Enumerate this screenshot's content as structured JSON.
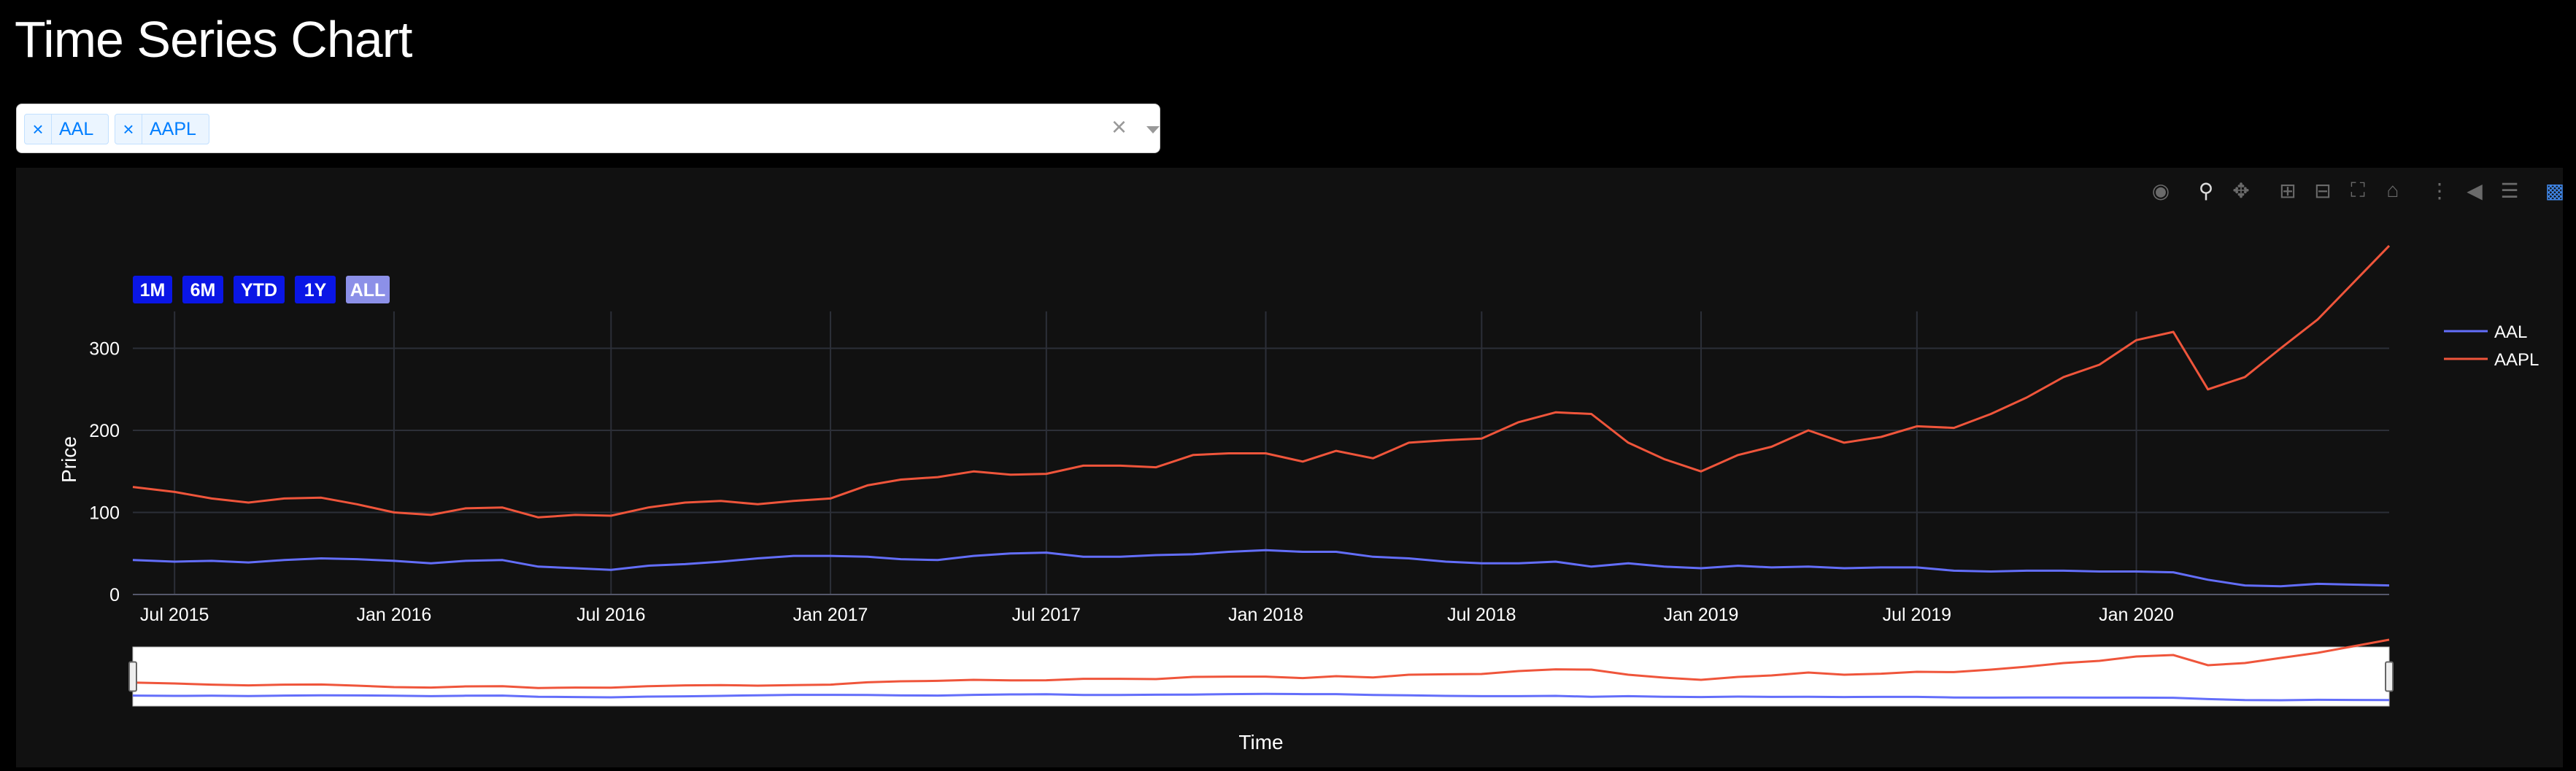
{
  "page_title": "Time Series Chart",
  "dropdown": {
    "selected": [
      "AAL",
      "AAPL"
    ],
    "remove_glyph": "×",
    "clear_glyph": "×"
  },
  "modebar": [
    "camera-icon",
    "zoom-icon",
    "pan-icon",
    "zoom-in-icon",
    "zoom-out-icon",
    "autoscale-icon",
    "reset-axes-icon",
    "spike-lines-icon",
    "hover-closest-icon",
    "hover-compare-icon",
    "plotly-logo-icon"
  ],
  "range_selector": [
    "1M",
    "6M",
    "YTD",
    "1Y",
    "ALL"
  ],
  "range_selector_active": "ALL",
  "colors": {
    "background": "#111111",
    "AAL": "#636efa",
    "AAPL": "#ef553b",
    "button": "#0a16e6",
    "button_active": "#8c90e8"
  },
  "chart_data": {
    "type": "line",
    "title": "",
    "xlabel": "Time",
    "ylabel": "Price",
    "ylim": [
      0,
      345
    ],
    "yticks": [
      0,
      100,
      200,
      300
    ],
    "xlim": [
      "2015-05-27",
      "2020-07-31"
    ],
    "xticks": [
      {
        "date": "2015-07-01",
        "label": "Jul 2015"
      },
      {
        "date": "2016-01-01",
        "label": "Jan 2016"
      },
      {
        "date": "2016-07-01",
        "label": "Jul 2016"
      },
      {
        "date": "2017-01-01",
        "label": "Jan 2017"
      },
      {
        "date": "2017-07-01",
        "label": "Jul 2017"
      },
      {
        "date": "2018-01-01",
        "label": "Jan 2018"
      },
      {
        "date": "2018-07-01",
        "label": "Jul 2018"
      },
      {
        "date": "2019-01-01",
        "label": "Jan 2019"
      },
      {
        "date": "2019-07-01",
        "label": "Jul 2019"
      },
      {
        "date": "2020-01-01",
        "label": "Jan 2020"
      }
    ],
    "grid": true,
    "legend": "top-right",
    "rangeslider": true,
    "series": [
      {
        "name": "AAL",
        "points": [
          [
            "2015-05-27",
            42
          ],
          [
            "2015-07-01",
            40
          ],
          [
            "2015-08-01",
            41
          ],
          [
            "2015-09-01",
            39
          ],
          [
            "2015-10-01",
            42
          ],
          [
            "2015-11-01",
            44
          ],
          [
            "2015-12-01",
            43
          ],
          [
            "2016-01-01",
            41
          ],
          [
            "2016-02-01",
            38
          ],
          [
            "2016-03-01",
            41
          ],
          [
            "2016-04-01",
            42
          ],
          [
            "2016-05-01",
            34
          ],
          [
            "2016-06-01",
            32
          ],
          [
            "2016-07-01",
            30
          ],
          [
            "2016-08-01",
            35
          ],
          [
            "2016-09-01",
            37
          ],
          [
            "2016-10-01",
            40
          ],
          [
            "2016-11-01",
            44
          ],
          [
            "2016-12-01",
            47
          ],
          [
            "2017-01-01",
            47
          ],
          [
            "2017-02-01",
            46
          ],
          [
            "2017-03-01",
            43
          ],
          [
            "2017-04-01",
            42
          ],
          [
            "2017-05-01",
            47
          ],
          [
            "2017-06-01",
            50
          ],
          [
            "2017-07-01",
            51
          ],
          [
            "2017-08-01",
            46
          ],
          [
            "2017-09-01",
            46
          ],
          [
            "2017-10-01",
            48
          ],
          [
            "2017-11-01",
            49
          ],
          [
            "2017-12-01",
            52
          ],
          [
            "2018-01-01",
            54
          ],
          [
            "2018-02-01",
            52
          ],
          [
            "2018-03-01",
            52
          ],
          [
            "2018-04-01",
            46
          ],
          [
            "2018-05-01",
            44
          ],
          [
            "2018-06-01",
            40
          ],
          [
            "2018-07-01",
            38
          ],
          [
            "2018-08-01",
            38
          ],
          [
            "2018-09-01",
            40
          ],
          [
            "2018-10-01",
            34
          ],
          [
            "2018-11-01",
            38
          ],
          [
            "2018-12-01",
            34
          ],
          [
            "2019-01-01",
            32
          ],
          [
            "2019-02-01",
            35
          ],
          [
            "2019-03-01",
            33
          ],
          [
            "2019-04-01",
            34
          ],
          [
            "2019-05-01",
            32
          ],
          [
            "2019-06-01",
            33
          ],
          [
            "2019-07-01",
            33
          ],
          [
            "2019-08-01",
            29
          ],
          [
            "2019-09-01",
            28
          ],
          [
            "2019-10-01",
            29
          ],
          [
            "2019-11-01",
            29
          ],
          [
            "2019-12-01",
            28
          ],
          [
            "2020-01-01",
            28
          ],
          [
            "2020-02-01",
            27
          ],
          [
            "2020-03-01",
            18
          ],
          [
            "2020-04-01",
            11
          ],
          [
            "2020-05-01",
            10
          ],
          [
            "2020-06-01",
            13
          ],
          [
            "2020-07-01",
            12
          ],
          [
            "2020-07-31",
            11
          ]
        ]
      },
      {
        "name": "AAPL",
        "points": [
          [
            "2015-05-27",
            131
          ],
          [
            "2015-07-01",
            125
          ],
          [
            "2015-08-01",
            117
          ],
          [
            "2015-09-01",
            112
          ],
          [
            "2015-10-01",
            117
          ],
          [
            "2015-11-01",
            118
          ],
          [
            "2015-12-01",
            110
          ],
          [
            "2016-01-01",
            100
          ],
          [
            "2016-02-01",
            97
          ],
          [
            "2016-03-01",
            105
          ],
          [
            "2016-04-01",
            106
          ],
          [
            "2016-05-01",
            94
          ],
          [
            "2016-06-01",
            97
          ],
          [
            "2016-07-01",
            96
          ],
          [
            "2016-08-01",
            106
          ],
          [
            "2016-09-01",
            112
          ],
          [
            "2016-10-01",
            114
          ],
          [
            "2016-11-01",
            110
          ],
          [
            "2016-12-01",
            114
          ],
          [
            "2017-01-01",
            117
          ],
          [
            "2017-02-01",
            133
          ],
          [
            "2017-03-01",
            140
          ],
          [
            "2017-04-01",
            143
          ],
          [
            "2017-05-01",
            150
          ],
          [
            "2017-06-01",
            146
          ],
          [
            "2017-07-01",
            147
          ],
          [
            "2017-08-01",
            157
          ],
          [
            "2017-09-01",
            157
          ],
          [
            "2017-10-01",
            155
          ],
          [
            "2017-11-01",
            170
          ],
          [
            "2017-12-01",
            172
          ],
          [
            "2018-01-01",
            172
          ],
          [
            "2018-02-01",
            162
          ],
          [
            "2018-03-01",
            175
          ],
          [
            "2018-04-01",
            166
          ],
          [
            "2018-05-01",
            185
          ],
          [
            "2018-06-01",
            188
          ],
          [
            "2018-07-01",
            190
          ],
          [
            "2018-08-01",
            210
          ],
          [
            "2018-09-01",
            222
          ],
          [
            "2018-10-01",
            220
          ],
          [
            "2018-11-01",
            185
          ],
          [
            "2018-12-01",
            165
          ],
          [
            "2019-01-01",
            150
          ],
          [
            "2019-02-01",
            170
          ],
          [
            "2019-03-01",
            180
          ],
          [
            "2019-04-01",
            200
          ],
          [
            "2019-05-01",
            185
          ],
          [
            "2019-06-01",
            192
          ],
          [
            "2019-07-01",
            205
          ],
          [
            "2019-08-01",
            203
          ],
          [
            "2019-09-01",
            220
          ],
          [
            "2019-10-01",
            240
          ],
          [
            "2019-11-01",
            265
          ],
          [
            "2019-12-01",
            280
          ],
          [
            "2020-01-01",
            310
          ],
          [
            "2020-02-01",
            320
          ],
          [
            "2020-03-01",
            250
          ],
          [
            "2020-04-01",
            265
          ],
          [
            "2020-05-01",
            300
          ],
          [
            "2020-06-01",
            335
          ],
          [
            "2020-07-01",
            380
          ],
          [
            "2020-07-31",
            425
          ]
        ]
      }
    ]
  }
}
